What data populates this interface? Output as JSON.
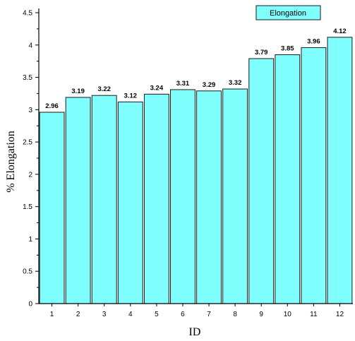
{
  "chart_data": {
    "type": "bar",
    "categories": [
      "1",
      "2",
      "3",
      "4",
      "5",
      "6",
      "7",
      "8",
      "9",
      "10",
      "11",
      "12"
    ],
    "series": [
      {
        "name": "Elongation",
        "values": [
          2.96,
          3.19,
          3.22,
          3.12,
          3.24,
          3.31,
          3.29,
          3.32,
          3.79,
          3.85,
          3.96,
          4.12
        ],
        "labels": [
          "2.96",
          "3.19",
          "3.22",
          "3.12",
          "3.24",
          "3.31",
          "3.29",
          "3.32",
          "3.79",
          "3.85",
          "3.96",
          "4.12"
        ]
      }
    ],
    "title": "",
    "xlabel": "ID",
    "ylabel": "% Elongation",
    "ylim": [
      0,
      4.5
    ],
    "yticks": [
      "0",
      "0.5",
      "1",
      "1.5",
      "2",
      "2.5",
      "3",
      "3.5",
      "4",
      "4.5"
    ],
    "grid": false,
    "legend_position": "top-right",
    "colors": {
      "bar_fill": "#80FFFF",
      "bar_stroke": "#1a1a1a",
      "axis": "#000000"
    }
  }
}
